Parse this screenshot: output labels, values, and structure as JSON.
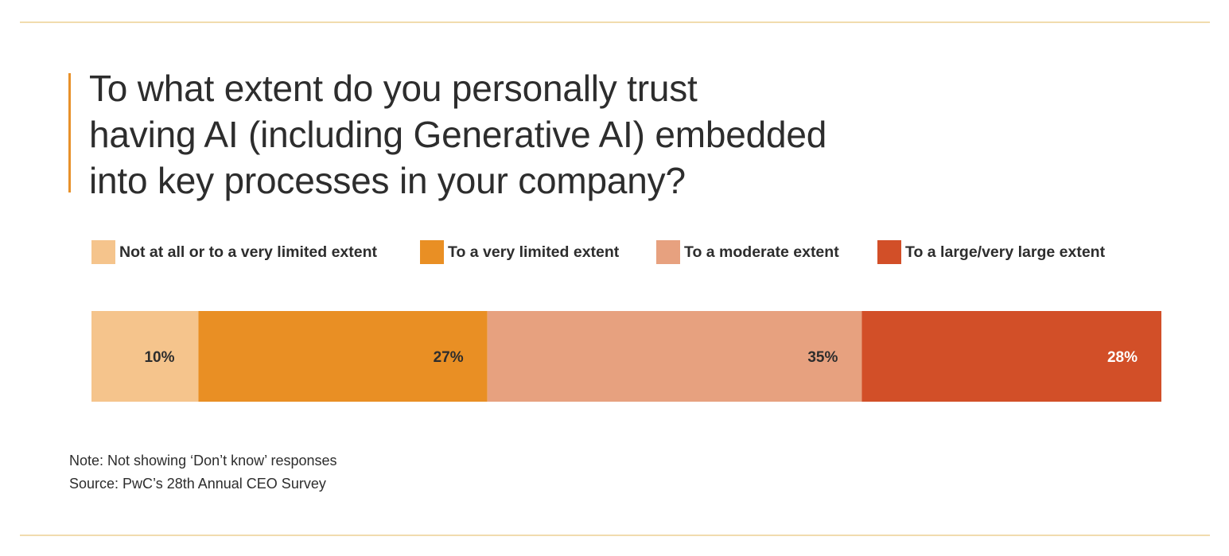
{
  "chart_data": {
    "type": "bar",
    "orientation": "horizontal",
    "stacked": true,
    "normalized": true,
    "title": "To what extent do you personally trust having AI (including Generative AI) embedded into key processes in your company?",
    "title_lines": [
      "To what extent do you personally trust",
      "having AI (including Generative AI) embedded",
      "into key processes in your company?"
    ],
    "categories": [
      ""
    ],
    "series": [
      {
        "name": "Not at all or to a very limited extent",
        "values": [
          10
        ],
        "label": "10%",
        "color": "#f5c48c",
        "label_color": "#2d2d2d"
      },
      {
        "name": "To a very limited extent",
        "values": [
          27
        ],
        "label": "27%",
        "color": "#e98f24",
        "label_color": "#2d2d2d"
      },
      {
        "name": "To a moderate extent",
        "values": [
          35
        ],
        "label": "35%",
        "color": "#e7a17f",
        "label_color": "#2d2d2d"
      },
      {
        "name": "To a large/very large extent",
        "values": [
          28
        ],
        "label": "28%",
        "color": "#d24f28",
        "label_color": "#ffffff"
      }
    ],
    "xlim": [
      0,
      100
    ],
    "legend_position": "top",
    "grid": false
  },
  "notes": {
    "note": "Note: Not showing ‘Don’t know’ responses",
    "source": "Source: PwC’s 28th Annual CEO Survey"
  },
  "colors": {
    "rule": "#f1dcae",
    "title_accent": "#e8912a",
    "text": "#2d2d2d"
  }
}
